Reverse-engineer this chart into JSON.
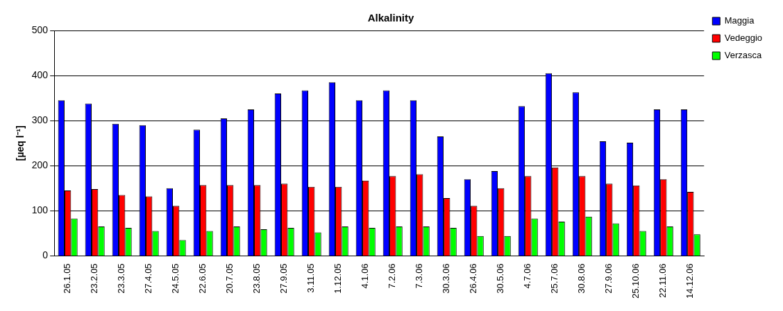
{
  "chart_data": {
    "type": "bar",
    "title": "Alkalinity",
    "ylabel": "[µeq l⁻¹]",
    "categories": [
      "26.1.05",
      "23.2.05",
      "23.3.05",
      "27.4.05",
      "24.5.05",
      "22.6.05",
      "20.7.05",
      "23.8.05",
      "27.9.05",
      "3.11.05",
      "1.12.05",
      "4.1.06",
      "7.2.06",
      "7.3.06",
      "30.3.06",
      "26.4.06",
      "30.5.06",
      "4.7.06",
      "25.7.06",
      "30.8.06",
      "27.9.06",
      "25.10.06",
      "22.11.06",
      "14.12.06"
    ],
    "series": [
      {
        "name": "Maggia",
        "color": "#0000ff",
        "values": [
          345,
          338,
          293,
          290,
          150,
          280,
          305,
          325,
          360,
          367,
          385,
          345,
          367,
          345,
          265,
          170,
          188,
          332,
          405,
          363,
          254,
          251,
          325,
          325
        ]
      },
      {
        "name": "Vedeggio",
        "color": "#ff0000",
        "values": [
          145,
          148,
          135,
          132,
          111,
          157,
          157,
          157,
          160,
          153,
          153,
          167,
          177,
          181,
          128,
          111,
          150,
          177,
          196,
          177,
          160,
          156,
          170,
          142
        ]
      },
      {
        "name": "Verzasca",
        "color": "#00ff00",
        "values": [
          83,
          65,
          62,
          55,
          35,
          55,
          65,
          59,
          62,
          52,
          65,
          62,
          65,
          65,
          62,
          44,
          44,
          83,
          76,
          87,
          72,
          55,
          65,
          48
        ]
      }
    ],
    "ylim": [
      0,
      500
    ],
    "yticks": [
      0,
      100,
      200,
      300,
      400,
      500
    ],
    "grid": "y",
    "legend": "top right"
  }
}
